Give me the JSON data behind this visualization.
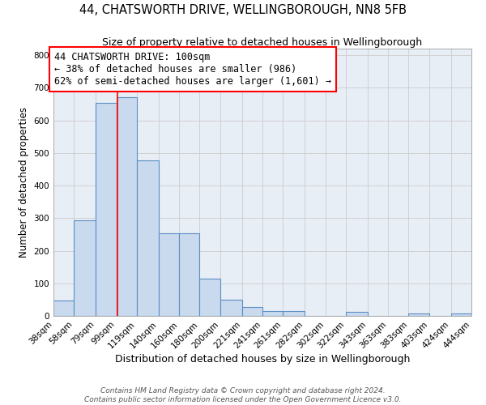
{
  "title": "44, CHATSWORTH DRIVE, WELLINGBOROUGH, NN8 5FB",
  "subtitle": "Size of property relative to detached houses in Wellingborough",
  "xlabel": "Distribution of detached houses by size in Wellingborough",
  "ylabel": "Number of detached properties",
  "bin_edges": [
    38,
    58,
    79,
    99,
    119,
    140,
    160,
    180,
    200,
    221,
    241,
    261,
    282,
    302,
    322,
    343,
    363,
    383,
    403,
    424,
    444
  ],
  "bin_heights": [
    47,
    293,
    653,
    670,
    477,
    253,
    253,
    115,
    50,
    28,
    15,
    15,
    0,
    0,
    13,
    0,
    0,
    7,
    0,
    7
  ],
  "bar_facecolor": "#c9d9ee",
  "bar_edgecolor": "#5a8fc3",
  "bar_linewidth": 0.8,
  "grid_color": "#cccccc",
  "background_color": "#e8eef5",
  "vline_x": 100,
  "vline_color": "red",
  "vline_linewidth": 1.2,
  "annotation_box_text": "44 CHATSWORTH DRIVE: 100sqm\n← 38% of detached houses are smaller (986)\n62% of semi-detached houses are larger (1,601) →",
  "annotation_box_color": "red",
  "annotation_box_facecolor": "white",
  "annotation_fontsize": 8.5,
  "tick_labels": [
    "38sqm",
    "58sqm",
    "79sqm",
    "99sqm",
    "119sqm",
    "140sqm",
    "160sqm",
    "180sqm",
    "200sqm",
    "221sqm",
    "241sqm",
    "261sqm",
    "282sqm",
    "302sqm",
    "322sqm",
    "343sqm",
    "363sqm",
    "383sqm",
    "403sqm",
    "424sqm",
    "444sqm"
  ],
  "ylim": [
    0,
    820
  ],
  "yticks": [
    0,
    100,
    200,
    300,
    400,
    500,
    600,
    700,
    800
  ],
  "footer_line1": "Contains HM Land Registry data © Crown copyright and database right 2024.",
  "footer_line2": "Contains public sector information licensed under the Open Government Licence v3.0.",
  "title_fontsize": 10.5,
  "subtitle_fontsize": 9,
  "xlabel_fontsize": 9,
  "ylabel_fontsize": 8.5,
  "tick_fontsize": 7.5,
  "footer_fontsize": 6.5
}
